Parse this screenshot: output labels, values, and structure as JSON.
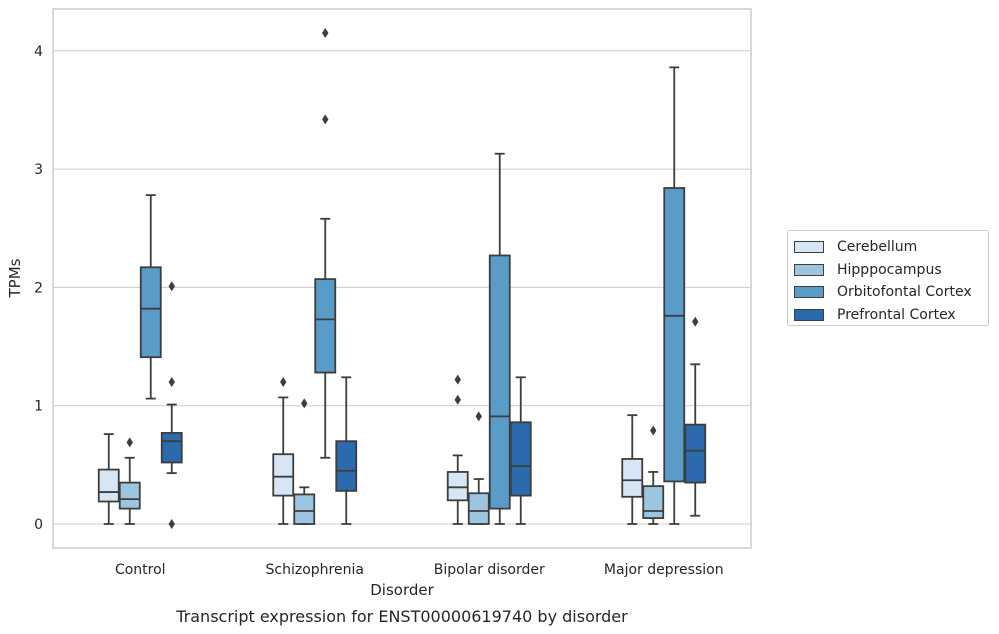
{
  "chart_data": {
    "type": "box",
    "title": "Transcript expression for ENST00000619740 by disorder",
    "xlabel": "Disorder",
    "ylabel": "TPMs",
    "categories": [
      "Control",
      "Schizophrenia",
      "Bipolar disorder",
      "Major depression"
    ],
    "ylim": [
      -0.2,
      4.35
    ],
    "yticks": [
      "0",
      "1",
      "2",
      "3",
      "4"
    ],
    "grid": true,
    "legend_position": "right",
    "series": [
      {
        "name": "Cerebellum",
        "color": "#d6e6f4",
        "boxes": [
          {
            "whisker_low": 0.0,
            "q1": 0.19,
            "median": 0.27,
            "q3": 0.46,
            "whisker_high": 0.76,
            "outliers": []
          },
          {
            "whisker_low": 0.0,
            "q1": 0.24,
            "median": 0.4,
            "q3": 0.59,
            "whisker_high": 1.07,
            "outliers": [
              1.2
            ]
          },
          {
            "whisker_low": 0.0,
            "q1": 0.2,
            "median": 0.31,
            "q3": 0.44,
            "whisker_high": 0.58,
            "outliers": [
              1.05,
              1.22
            ]
          },
          {
            "whisker_low": 0.0,
            "q1": 0.23,
            "median": 0.37,
            "q3": 0.55,
            "whisker_high": 0.92,
            "outliers": []
          }
        ]
      },
      {
        "name": "Hipppocampus",
        "color": "#9cc5e0",
        "boxes": [
          {
            "whisker_low": 0.0,
            "q1": 0.13,
            "median": 0.21,
            "q3": 0.35,
            "whisker_high": 0.56,
            "outliers": [
              0.69
            ]
          },
          {
            "whisker_low": 0.0,
            "q1": 0.0,
            "median": 0.11,
            "q3": 0.25,
            "whisker_high": 0.31,
            "outliers": [
              1.02
            ]
          },
          {
            "whisker_low": 0.0,
            "q1": 0.0,
            "median": 0.11,
            "q3": 0.26,
            "whisker_high": 0.38,
            "outliers": [
              0.91
            ]
          },
          {
            "whisker_low": 0.0,
            "q1": 0.05,
            "median": 0.11,
            "q3": 0.32,
            "whisker_high": 0.44,
            "outliers": [
              0.79
            ]
          }
        ]
      },
      {
        "name": "Orbitofontal Cortex",
        "color": "#5a9cc8",
        "boxes": [
          {
            "whisker_low": 1.06,
            "q1": 1.41,
            "median": 1.82,
            "q3": 2.17,
            "whisker_high": 2.78,
            "outliers": []
          },
          {
            "whisker_low": 0.56,
            "q1": 1.28,
            "median": 1.73,
            "q3": 2.07,
            "whisker_high": 2.58,
            "outliers": [
              3.42,
              4.15
            ]
          },
          {
            "whisker_low": 0.0,
            "q1": 0.13,
            "median": 0.91,
            "q3": 2.27,
            "whisker_high": 3.13,
            "outliers": []
          },
          {
            "whisker_low": 0.0,
            "q1": 0.36,
            "median": 1.76,
            "q3": 2.84,
            "whisker_high": 3.86,
            "outliers": []
          }
        ]
      },
      {
        "name": "Prefrontal Cortex",
        "color": "#2a6aad",
        "boxes": [
          {
            "whisker_low": 0.43,
            "q1": 0.52,
            "median": 0.7,
            "q3": 0.77,
            "whisker_high": 1.01,
            "outliers": [
              0.0,
              1.2,
              2.01
            ]
          },
          {
            "whisker_low": 0.0,
            "q1": 0.28,
            "median": 0.45,
            "q3": 0.7,
            "whisker_high": 1.24,
            "outliers": []
          },
          {
            "whisker_low": 0.0,
            "q1": 0.24,
            "median": 0.49,
            "q3": 0.86,
            "whisker_high": 1.24,
            "outliers": []
          },
          {
            "whisker_low": 0.07,
            "q1": 0.35,
            "median": 0.62,
            "q3": 0.84,
            "whisker_high": 1.35,
            "outliers": [
              1.71
            ]
          }
        ]
      }
    ]
  }
}
